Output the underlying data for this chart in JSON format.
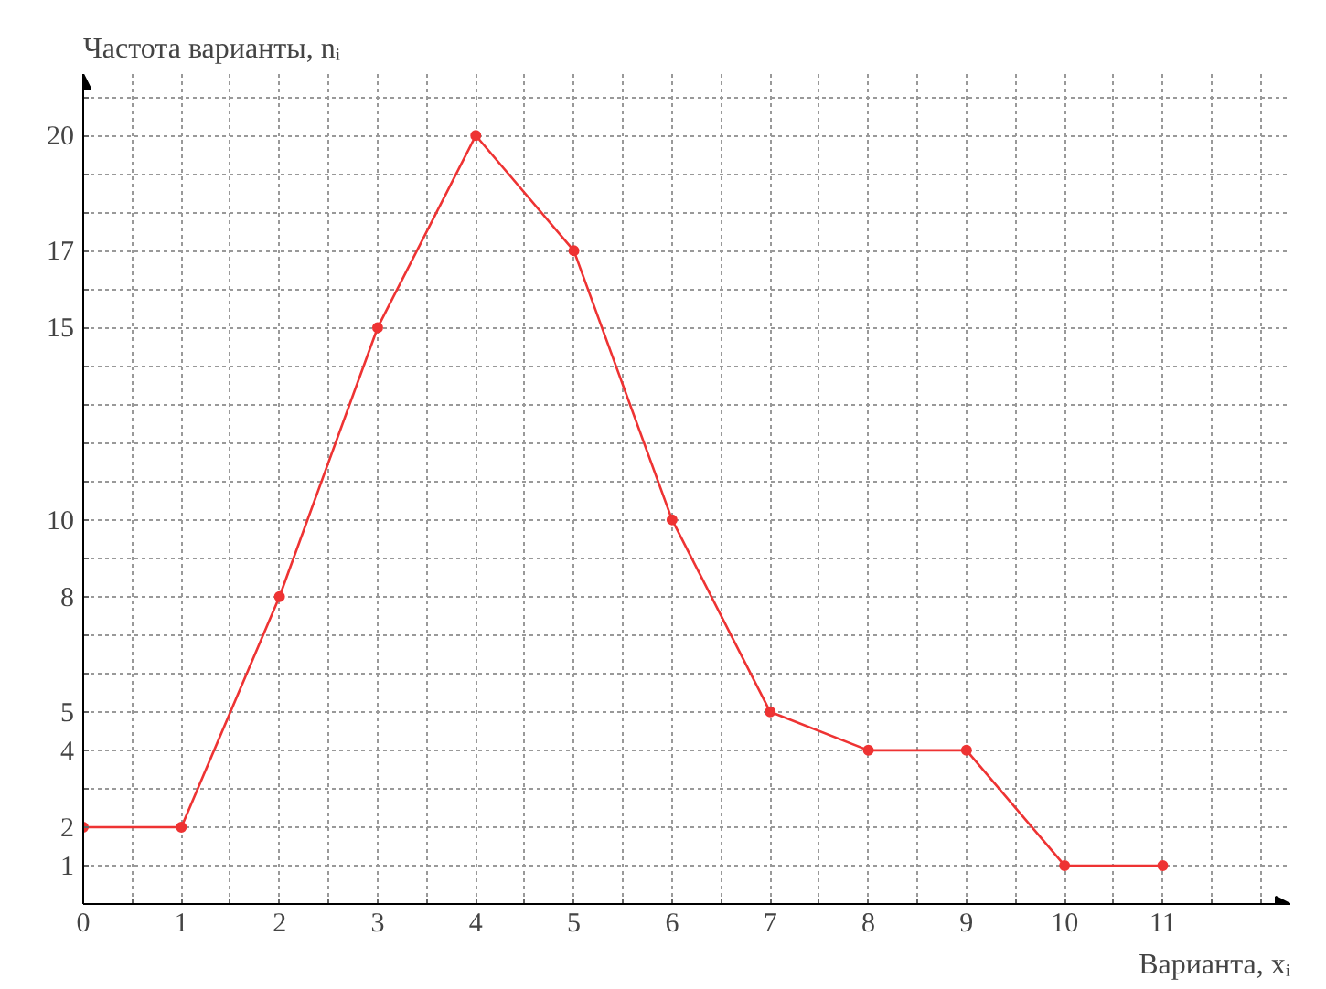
{
  "chart_data": {
    "type": "line",
    "xlabel": "Варианта, xᵢ",
    "ylabel": "Частота варианты, nᵢ",
    "x": [
      0,
      1,
      2,
      3,
      4,
      5,
      6,
      7,
      8,
      9,
      10,
      11
    ],
    "series": [
      {
        "color": "#ee3333",
        "values": [
          2,
          2,
          8,
          15,
          20,
          17,
          10,
          5,
          4,
          4,
          1,
          1
        ]
      }
    ],
    "xlim": [
      0,
      12.3
    ],
    "ylim": [
      0,
      21.6
    ],
    "xticks": [
      0,
      {
        "value": 0.5,
        "label": null
      },
      1,
      {
        "value": 1.5,
        "label": null
      },
      2,
      {
        "value": 2.5,
        "label": null
      },
      3,
      {
        "value": 3.5,
        "label": null
      },
      4,
      {
        "value": 4.5,
        "label": null
      },
      5,
      {
        "value": 5.5,
        "label": null
      },
      6,
      {
        "value": 6.5,
        "label": null
      },
      7,
      {
        "value": 7.5,
        "label": null
      },
      8,
      {
        "value": 8.5,
        "label": null
      },
      9,
      {
        "value": 9.5,
        "label": null
      },
      10,
      {
        "value": 10.5,
        "label": null
      },
      11,
      {
        "value": 11.5,
        "label": null
      },
      {
        "value": 12,
        "label": null
      }
    ],
    "yticks": [
      1,
      2,
      {
        "value": 3,
        "label": null
      },
      4,
      5,
      {
        "value": 6,
        "label": null
      },
      {
        "value": 7,
        "label": null
      },
      8,
      {
        "value": 9,
        "label": null
      },
      10,
      {
        "value": 11,
        "label": null
      },
      {
        "value": 12,
        "label": null
      },
      {
        "value": 13,
        "label": null
      },
      {
        "value": 14,
        "label": null
      },
      15,
      {
        "value": 16,
        "label": null
      },
      17,
      {
        "value": 18,
        "label": null
      },
      {
        "value": 19,
        "label": null
      },
      20,
      {
        "value": 21,
        "label": null
      }
    ],
    "grid": true,
    "marker": "circle",
    "line_style": "solid"
  }
}
